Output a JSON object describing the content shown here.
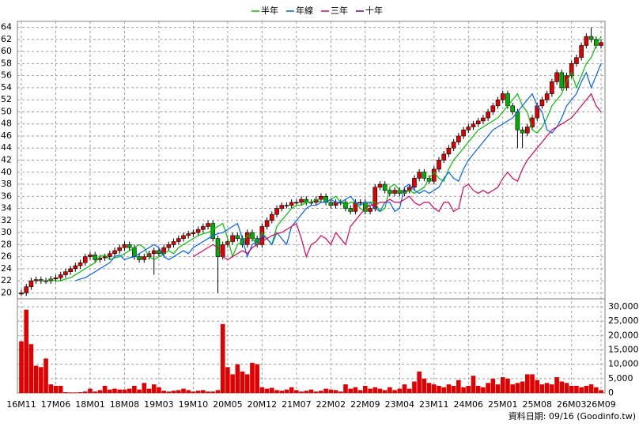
{
  "chart_data": {
    "type": "candlestick",
    "legend": "top",
    "up_color": "#e00000",
    "down_color": "#00b000",
    "categories": [
      "16M11",
      null,
      null,
      null,
      null,
      null,
      null,
      "17M06",
      null,
      null,
      null,
      null,
      null,
      null,
      "18M01",
      null,
      null,
      null,
      null,
      null,
      null,
      "18M08",
      null,
      null,
      null,
      null,
      null,
      null,
      "19M03",
      null,
      null,
      null,
      null,
      null,
      null,
      "19M10",
      null,
      null,
      null,
      null,
      null,
      null,
      "20M05",
      null,
      null,
      null,
      null,
      null,
      null,
      "20M12",
      null,
      null,
      null,
      null,
      null,
      null,
      "21M07",
      null,
      null,
      null,
      null,
      null,
      null,
      "22M02",
      null,
      null,
      null,
      null,
      null,
      null,
      "22M09",
      null,
      null,
      null,
      null,
      null,
      null,
      "23M04",
      null,
      null,
      null,
      null,
      null,
      null,
      "23M11",
      null,
      null,
      null,
      null,
      null,
      null,
      "24M06",
      null,
      null,
      null,
      null,
      null,
      null,
      "25M01",
      null,
      null,
      null,
      null,
      null,
      null,
      "25M08",
      null,
      null,
      null,
      null,
      null,
      null,
      "26M03",
      null,
      null,
      null,
      null,
      null,
      "26M09"
    ],
    "open": [
      19.8,
      20,
      21,
      22,
      22.2,
      22,
      22,
      22.3,
      22.5,
      23,
      23.5,
      24,
      24.5,
      25,
      26,
      26.3,
      25.5,
      25.8,
      26,
      26.5,
      27,
      27.5,
      28,
      27.5,
      26,
      25.5,
      26,
      26.5,
      27,
      26.5,
      27.5,
      28,
      28.5,
      29,
      29.5,
      29.8,
      30,
      30.5,
      31,
      31.5,
      29,
      26,
      28,
      28.5,
      29.5,
      29,
      28,
      30,
      29,
      28,
      31,
      32,
      33,
      34,
      34.5,
      34.5,
      35,
      35,
      35.5,
      35,
      35,
      35.5,
      36,
      35,
      34.5,
      35,
      35,
      34,
      33.5,
      35,
      35,
      33.5,
      34,
      37.5,
      38,
      37,
      36.5,
      37,
      36.5,
      37,
      37.5,
      39,
      40,
      39,
      38.5,
      40.5,
      42,
      43,
      44,
      45,
      46,
      47,
      47.5,
      48,
      48.5,
      49,
      50,
      51,
      52,
      53,
      51,
      50,
      47,
      46.5,
      47.5,
      49,
      51,
      52,
      53,
      55,
      56.5,
      54,
      56,
      58,
      59,
      61,
      62.5,
      62,
      61
    ],
    "high": [
      20.5,
      21.5,
      22.5,
      22.7,
      22.7,
      22.5,
      22.8,
      23,
      23.5,
      24,
      24.5,
      25,
      25.5,
      26.5,
      26.8,
      26.8,
      26.3,
      26.5,
      27,
      27.5,
      28,
      28.5,
      28.5,
      28,
      26.5,
      26.5,
      27,
      27.5,
      27.5,
      28,
      28.5,
      29,
      29.5,
      30,
      30.3,
      30.5,
      31,
      31.5,
      32,
      32,
      29.5,
      28.5,
      29,
      30,
      30,
      29.5,
      30.5,
      30.5,
      29.5,
      31.5,
      32.5,
      33.5,
      34.5,
      35,
      35,
      35.5,
      35.5,
      36,
      36,
      35.5,
      36,
      36.5,
      36.5,
      35.5,
      35.5,
      35.5,
      35.5,
      34.5,
      35.5,
      35.5,
      35.5,
      34.5,
      38,
      38.5,
      38.5,
      37.5,
      37.5,
      37.5,
      37.5,
      38,
      39.5,
      40.5,
      40.5,
      39.5,
      41,
      42.5,
      43.5,
      44.5,
      45.5,
      46.5,
      47.5,
      48,
      48.5,
      49,
      49.5,
      50.5,
      51.5,
      52.5,
      53.5,
      53.5,
      51.5,
      50.5,
      47.5,
      48,
      49.5,
      51.5,
      52.5,
      53.5,
      55.5,
      57,
      57,
      56.5,
      58.5,
      59.5,
      61.5,
      63,
      64,
      62.5,
      62
    ],
    "low": [
      19.5,
      19.5,
      20.5,
      21.5,
      21.5,
      21.5,
      21.5,
      21.8,
      22,
      22.5,
      23,
      23.5,
      24,
      24.5,
      25.5,
      25,
      25,
      25.3,
      25.5,
      26,
      26.5,
      27,
      27,
      25.5,
      25,
      25,
      25.5,
      23,
      26,
      26,
      27,
      27.5,
      28,
      28.5,
      29,
      29.3,
      29.5,
      30,
      30.5,
      28.5,
      20,
      25.5,
      27.5,
      28,
      28.5,
      27.5,
      27.5,
      28.5,
      27.5,
      27.5,
      30.5,
      31.5,
      32.5,
      33.5,
      34,
      34,
      34.5,
      34.5,
      34.5,
      34.5,
      34.5,
      35,
      34.5,
      34,
      34,
      34.5,
      33.5,
      33,
      33,
      34.5,
      33,
      33,
      33.5,
      37,
      36.5,
      36,
      36,
      36,
      36,
      36.5,
      37,
      38.5,
      38.5,
      38,
      38,
      40,
      41.5,
      42.5,
      43.5,
      44.5,
      45.5,
      46.5,
      47,
      47.5,
      48,
      48.5,
      49.5,
      50.5,
      51.5,
      50.5,
      49.5,
      44,
      44,
      46,
      47,
      48.5,
      50.5,
      51.5,
      52.5,
      54.5,
      53.5,
      53.5,
      55.5,
      57.5,
      58.5,
      60.5,
      61.5,
      60.5,
      60.5
    ],
    "close": [
      20,
      21,
      22,
      22.2,
      22,
      22,
      22.3,
      22.5,
      23,
      23.5,
      24,
      24.5,
      25,
      26,
      26.3,
      25.5,
      25.8,
      26,
      26.5,
      27,
      27.5,
      28,
      27.5,
      26,
      25.5,
      26,
      26.5,
      27,
      26.5,
      27.5,
      28,
      28.5,
      29,
      29.5,
      29.8,
      30,
      30.5,
      31,
      31.5,
      29,
      26,
      28,
      28.5,
      29.5,
      29,
      28,
      30,
      29,
      28,
      31,
      32,
      33,
      34,
      34.5,
      34.5,
      35,
      35,
      35.5,
      35,
      35,
      35.5,
      36,
      35,
      34.5,
      35,
      35,
      34,
      33.5,
      35,
      35,
      33.5,
      34,
      37.5,
      38,
      37,
      36.5,
      37,
      36.5,
      37,
      37.5,
      39,
      40,
      39,
      38.5,
      40.5,
      42,
      43,
      44,
      45,
      46,
      47,
      47.5,
      48,
      48.5,
      49,
      50,
      51,
      52,
      53,
      51,
      50,
      47,
      46.5,
      47.5,
      49,
      51,
      52,
      53,
      55,
      56.5,
      54,
      56,
      58,
      59,
      61,
      62.5,
      62,
      61,
      61.5
    ],
    "ylim": [
      19,
      65
    ],
    "yticks": [
      20,
      22,
      24,
      26,
      28,
      30,
      32,
      34,
      36,
      38,
      40,
      42,
      44,
      46,
      48,
      50,
      52,
      54,
      56,
      58,
      60,
      62,
      64
    ],
    "grid": true,
    "series": [
      {
        "name": "半年",
        "color": "#00c000",
        "values": [
          null,
          null,
          null,
          null,
          null,
          22,
          22.2,
          22,
          22,
          22.3,
          22.5,
          23,
          23.5,
          24,
          24.5,
          25,
          26,
          26.3,
          25.5,
          25.8,
          26,
          26.5,
          27,
          27.5,
          28,
          27.5,
          26,
          25.5,
          26,
          26.5,
          27,
          26.5,
          27.5,
          28,
          28.5,
          29,
          29.5,
          29.8,
          30,
          30.5,
          31,
          31.5,
          29,
          26,
          28,
          28.5,
          29.5,
          29,
          28,
          30,
          29,
          28,
          31,
          32,
          33,
          34,
          34.5,
          34.5,
          35,
          35,
          35.5,
          35,
          35,
          35.5,
          36,
          35,
          34.5,
          35,
          35,
          34,
          33.5,
          35,
          35,
          33.5,
          34,
          37.5,
          38,
          37,
          36.5,
          37,
          36.5,
          37,
          37.5,
          39,
          40,
          39,
          38.5,
          40.5,
          42,
          43,
          44,
          45,
          46,
          47,
          47.5,
          48,
          48.5,
          49,
          50,
          51,
          52,
          53,
          51,
          50,
          47,
          46.5,
          47.5,
          49,
          51,
          52,
          53,
          55,
          56.5,
          54,
          56,
          58,
          59,
          61,
          62.5
        ]
      },
      {
        "name": "年線",
        "color": "#0060ff",
        "values": [
          null,
          null,
          null,
          null,
          null,
          null,
          null,
          null,
          null,
          null,
          null,
          22,
          22.3,
          22.5,
          23,
          23.5,
          24,
          24.5,
          25,
          26,
          26.3,
          25.5,
          25.8,
          26,
          26.5,
          27,
          27.5,
          28,
          27.5,
          26,
          25.5,
          26,
          26.5,
          27,
          26.5,
          27.5,
          28,
          28.5,
          29,
          29.5,
          29.8,
          30,
          30.5,
          31,
          31.5,
          29,
          26,
          28,
          28.5,
          29.5,
          29,
          28,
          30,
          29,
          28,
          31,
          32,
          33,
          34,
          34.5,
          34.5,
          35,
          35,
          35.5,
          35,
          35,
          35.5,
          36,
          35,
          34.5,
          35,
          35,
          34,
          33.5,
          35,
          35,
          33.5,
          34,
          37.5,
          38,
          37,
          36.5,
          37,
          36.5,
          37,
          37.5,
          39,
          40,
          39,
          38.5,
          40.5,
          42,
          43,
          44,
          45,
          46,
          47,
          47.5,
          48,
          48.5,
          49,
          50,
          51,
          52,
          53,
          51,
          50,
          47,
          46.5,
          47.5,
          49,
          51,
          52,
          53,
          55,
          56.5,
          54,
          56,
          58
        ]
      },
      {
        "name": "三年",
        "color": "#e0005a",
        "values": [
          null,
          null,
          null,
          null,
          null,
          null,
          null,
          null,
          null,
          null,
          null,
          null,
          null,
          null,
          null,
          null,
          null,
          null,
          null,
          null,
          null,
          null,
          null,
          null,
          null,
          null,
          null,
          null,
          null,
          null,
          null,
          null,
          null,
          null,
          null,
          26,
          26.5,
          27,
          27.5,
          28,
          27.5,
          26,
          25.5,
          26,
          26.5,
          27,
          26.5,
          27.5,
          28,
          28.5,
          29,
          29.5,
          29.8,
          30,
          30.5,
          31,
          31.5,
          29,
          26,
          28,
          28.5,
          29.5,
          29,
          28,
          30,
          29,
          28,
          31,
          32,
          33,
          34,
          34.5,
          34.5,
          35,
          35,
          35.5,
          35,
          35,
          35.5,
          36,
          35,
          34.5,
          35,
          35,
          34,
          33.5,
          35,
          35,
          33.5,
          34,
          37.5,
          38,
          37,
          36.5,
          37,
          36.5,
          37,
          37.5,
          39,
          40,
          39,
          38.5,
          40.5,
          42,
          43,
          44,
          45,
          46,
          47,
          47.5,
          48,
          48.5,
          49,
          50,
          51,
          52,
          53,
          51,
          50
        ]
      },
      {
        "name": "十年",
        "color": "#800080",
        "values": [
          null,
          null,
          null,
          null,
          null,
          null,
          null,
          null,
          null,
          null,
          null,
          null,
          null,
          null,
          null,
          null,
          null,
          null,
          null,
          null,
          null,
          null,
          null,
          null,
          null,
          null,
          null,
          null,
          null,
          null,
          null,
          null,
          null,
          null,
          null,
          null,
          null,
          null,
          null,
          null,
          null,
          null,
          null,
          null,
          null,
          null,
          null,
          null,
          null,
          null,
          null,
          null,
          null,
          null,
          null,
          null,
          null,
          null,
          null,
          null,
          null,
          null,
          null,
          null,
          null,
          null,
          null,
          null,
          null,
          null,
          null,
          null,
          null,
          null,
          null,
          null,
          null,
          null,
          null,
          null,
          null,
          null,
          null,
          null,
          null,
          null,
          null,
          null,
          null,
          null,
          null,
          null,
          null,
          null,
          null,
          null,
          null,
          null,
          null,
          null,
          null,
          null,
          null,
          null,
          null,
          null,
          null,
          null,
          null,
          null,
          null,
          null,
          null,
          null,
          null,
          null,
          null,
          null,
          null
        ]
      }
    ],
    "volume": {
      "color": "#e00000",
      "values": [
        18000,
        29000,
        17000,
        9500,
        9000,
        12000,
        3000,
        2500,
        2500,
        300,
        200,
        200,
        300,
        500,
        1500,
        500,
        1000,
        2500,
        1200,
        1500,
        1200,
        1200,
        1500,
        2500,
        1200,
        3500,
        1500,
        3000,
        2000,
        800,
        500,
        800,
        1000,
        1500,
        1000,
        500,
        800,
        1000,
        500,
        500,
        1000,
        24000,
        9000,
        6500,
        10000,
        7500,
        6500,
        10500,
        10000,
        2000,
        1500,
        1800,
        1000,
        800,
        1200,
        2000,
        1000,
        500,
        800,
        1200,
        500,
        800,
        1500,
        1200,
        1000,
        500,
        3000,
        1500,
        2000,
        1000,
        2500,
        1500,
        2000,
        1500,
        1000,
        2000,
        1000,
        1500,
        3000,
        1500,
        4000,
        7500,
        5000,
        3500,
        3000,
        2500,
        2000,
        3000,
        2500,
        4500,
        2000,
        2500,
        6000,
        2500,
        2000,
        3500,
        5000,
        3000,
        5500,
        5000,
        3000,
        3500,
        4000,
        6500,
        6500,
        4500,
        3000,
        3500,
        3000,
        5500,
        4000,
        3500,
        2500,
        2500,
        2000,
        2500,
        3000,
        2000,
        1000
      ],
      "ylim": [
        0,
        32200
      ],
      "yticks": [
        0,
        {
          "value": 5000,
          "label": "5,000"
        },
        {
          "value": 10000,
          "label": "10,000"
        },
        {
          "value": 15000,
          "label": "15,000"
        },
        {
          "value": 20000,
          "label": "20,000"
        },
        {
          "value": 25000,
          "label": "25,000"
        },
        {
          "value": 30000,
          "label": "30,000"
        }
      ]
    },
    "footer": "資料日期: 09/16 (Goodinfo.tw)"
  }
}
